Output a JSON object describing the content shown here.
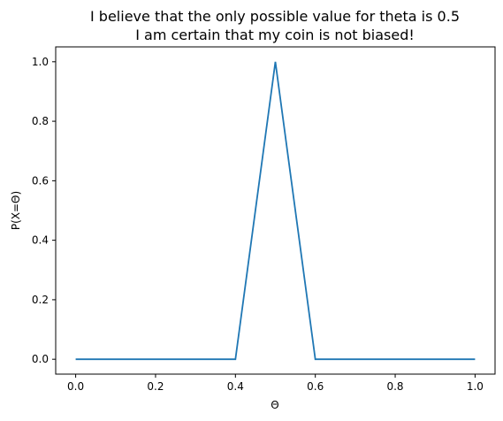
{
  "chart_data": {
    "type": "line",
    "title_lines": [
      "I believe that the only possible value for theta is 0.5",
      "I am certain that my coin is not biased!"
    ],
    "xlabel": "Θ",
    "ylabel": "P(X=Θ)",
    "xlim": [
      -0.05,
      1.05
    ],
    "ylim": [
      -0.05,
      1.05
    ],
    "x_ticks": [
      0.0,
      0.2,
      0.4,
      0.6,
      0.8,
      1.0
    ],
    "x_tick_labels": [
      "0.0",
      "0.2",
      "0.4",
      "0.6",
      "0.8",
      "1.0"
    ],
    "y_ticks": [
      0.0,
      0.2,
      0.4,
      0.6,
      0.8,
      1.0
    ],
    "y_tick_labels": [
      "0.0",
      "0.2",
      "0.4",
      "0.6",
      "0.8",
      "1.0"
    ],
    "grid": false,
    "series": [
      {
        "color": "#1f77b4",
        "x": [
          0.0,
          0.1,
          0.2,
          0.3,
          0.4,
          0.5,
          0.6,
          0.7,
          0.8,
          0.9,
          1.0
        ],
        "y": [
          0.0,
          0.0,
          0.0,
          0.0,
          0.0,
          1.0,
          0.0,
          0.0,
          0.0,
          0.0,
          0.0
        ]
      }
    ]
  }
}
